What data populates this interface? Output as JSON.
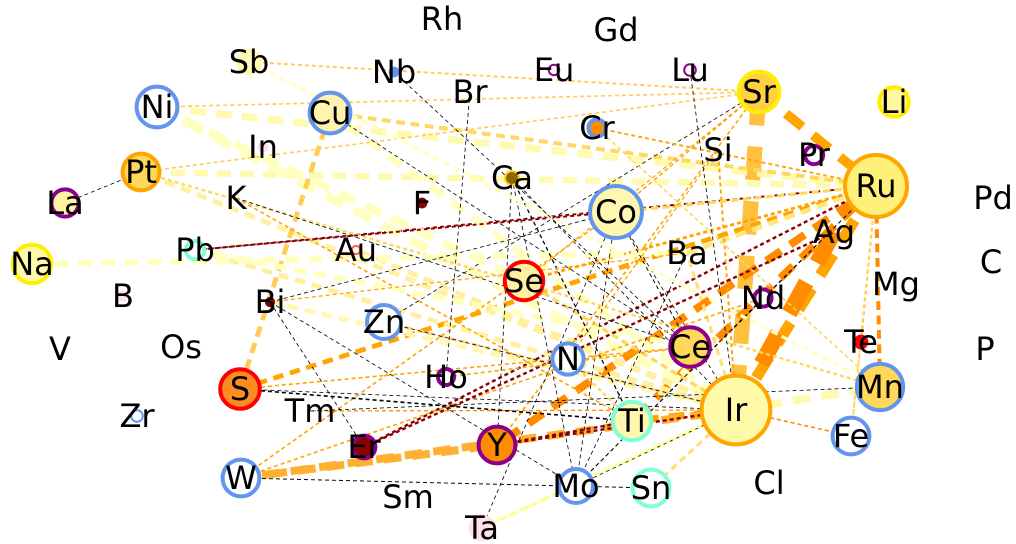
{
  "nodes": [
    {
      "id": "Rh",
      "label": "Rh"
    },
    {
      "id": "Gd",
      "label": "Gd"
    },
    {
      "id": "Sb",
      "label": "Sb",
      "fill": "#fffbbb",
      "stroke": "#fff8a8",
      "size": 0.28
    },
    {
      "id": "Nb",
      "label": "Nb",
      "fill": "#6495ed",
      "stroke": "#6495ed",
      "size": 0.05
    },
    {
      "id": "Eu",
      "label": "Eu",
      "fill": "#ffffff",
      "stroke": "#8b008b",
      "size": 0.08
    },
    {
      "id": "Lu",
      "label": "Lu",
      "fill": "#ffffff",
      "stroke": "#8b008b",
      "size": 0.1
    },
    {
      "id": "Sr",
      "label": "Sr",
      "fill": "#ffd040",
      "stroke": "#ffee00",
      "size": 0.62
    },
    {
      "id": "Li",
      "label": "Li",
      "fill": "#fff8a0",
      "stroke": "#ffee00",
      "size": 0.42
    },
    {
      "id": "Ni",
      "label": "Ni",
      "fill": "#ffffff",
      "stroke": "#6495ed",
      "size": 0.62
    },
    {
      "id": "Cu",
      "label": "Cu",
      "fill": "#fff3b0",
      "stroke": "#6495ed",
      "size": 0.62
    },
    {
      "id": "Br",
      "label": "Br"
    },
    {
      "id": "Cr",
      "label": "Cr",
      "fill": "#ff8c00",
      "stroke": "#6495ed",
      "size": 0.2
    },
    {
      "id": "In",
      "label": "In",
      "fill": "#ffe0ea",
      "stroke": "#ffe0ea",
      "size": 0.05
    },
    {
      "id": "Si",
      "label": "Si"
    },
    {
      "id": "Pr",
      "label": "Pr",
      "fill": "#ffffff",
      "stroke": "#8b008b",
      "size": 0.22
    },
    {
      "id": "Ru",
      "label": "Ru",
      "fill": "#fff07a",
      "stroke": "#ffa500",
      "size": 1.0
    },
    {
      "id": "Pt",
      "label": "Pt",
      "fill": "#ffd75a",
      "stroke": "#ffa500",
      "size": 0.55
    },
    {
      "id": "Ca",
      "label": "Ca",
      "fill": "#8b6508",
      "stroke": "#ffd700",
      "size": 0.14
    },
    {
      "id": "Pd",
      "label": "Pd"
    },
    {
      "id": "La",
      "label": "La",
      "fill": "#fff2a0",
      "stroke": "#8b008b",
      "size": 0.38
    },
    {
      "id": "K",
      "label": "K"
    },
    {
      "id": "F",
      "label": "F",
      "fill": "#8b0000",
      "stroke": "#8b0000",
      "size": 0.05
    },
    {
      "id": "Co",
      "label": "Co",
      "fill": "#fff6b0",
      "stroke": "#6495ed",
      "size": 0.82
    },
    {
      "id": "Ag",
      "label": "Ag"
    },
    {
      "id": "Pb",
      "label": "Pb",
      "fill": "#ffffff",
      "stroke": "#7fffd4",
      "size": 0.22
    },
    {
      "id": "Au",
      "label": "Au",
      "fill": "#ffffff",
      "stroke": "#ff6347",
      "size": 0.04
    },
    {
      "id": "Ba",
      "label": "Ba"
    },
    {
      "id": "C",
      "label": "C"
    },
    {
      "id": "Na",
      "label": "Na",
      "fill": "#fff8a8",
      "stroke": "#ffee00",
      "size": 0.58
    },
    {
      "id": "Se",
      "label": "Se",
      "fill": "#fff0a0",
      "stroke": "#ff0000",
      "size": 0.58
    },
    {
      "id": "Mg",
      "label": "Mg"
    },
    {
      "id": "B",
      "label": "B",
      "fill": "#ffe0ea",
      "stroke": "#ffe0ea",
      "size": 0.06
    },
    {
      "id": "Bi",
      "label": "Bi",
      "fill": "#8b0000",
      "stroke": "#8b0000",
      "size": 0.04
    },
    {
      "id": "Nd",
      "label": "Nd",
      "fill": "#ffffff",
      "stroke": "#8b008b",
      "size": 0.2
    },
    {
      "id": "Zn",
      "label": "Zn",
      "fill": "#ffffff",
      "stroke": "#6495ed",
      "size": 0.5
    },
    {
      "id": "Te",
      "label": "Te",
      "fill": "#ff0000",
      "stroke": "#ff0000",
      "size": 0.12
    },
    {
      "id": "V",
      "label": "V"
    },
    {
      "id": "Os",
      "label": "Os"
    },
    {
      "id": "P",
      "label": "P"
    },
    {
      "id": "N",
      "label": "N",
      "fill": "#ffffff",
      "stroke": "#6495ed",
      "size": 0.45
    },
    {
      "id": "Ce",
      "label": "Ce",
      "fill": "#ffd75a",
      "stroke": "#8b008b",
      "size": 0.6
    },
    {
      "id": "Ho",
      "label": "Ho",
      "fill": "#ffffff",
      "stroke": "#8b008b",
      "size": 0.18
    },
    {
      "id": "S",
      "label": "S",
      "fill": "#ff8c20",
      "stroke": "#ff0000",
      "size": 0.6
    },
    {
      "id": "Ir",
      "label": "Ir",
      "fill": "#fffaa8",
      "stroke": "#ffa500",
      "size": 1.12
    },
    {
      "id": "Mn",
      "label": "Mn",
      "fill": "#ffd75a",
      "stroke": "#6495ed",
      "size": 0.72
    },
    {
      "id": "Tm",
      "label": "Tm"
    },
    {
      "id": "Zr",
      "label": "Zr",
      "fill": "#ffffff",
      "stroke": "#6495ed",
      "size": 0.1
    },
    {
      "id": "Ti",
      "label": "Ti",
      "fill": "#fff7b0",
      "stroke": "#7fffd4",
      "size": 0.58
    },
    {
      "id": "Er",
      "label": "Er",
      "fill": "#8b0000",
      "stroke": "#8b008b",
      "size": 0.3
    },
    {
      "id": "Y",
      "label": "Y",
      "fill": "#ff8c00",
      "stroke": "#8b008b",
      "size": 0.55
    },
    {
      "id": "Fe",
      "label": "Fe",
      "fill": "#ffffff",
      "stroke": "#6495ed",
      "size": 0.55
    },
    {
      "id": "W",
      "label": "W",
      "fill": "#ffffff",
      "stroke": "#6495ed",
      "size": 0.55
    },
    {
      "id": "Cl",
      "label": "Cl"
    },
    {
      "id": "Sm",
      "label": "Sm"
    },
    {
      "id": "Mo",
      "label": "Mo",
      "fill": "#ffffff",
      "stroke": "#6495ed",
      "size": 0.5
    },
    {
      "id": "Sn",
      "label": "Sn",
      "fill": "#ffffff",
      "stroke": "#7fffd4",
      "size": 0.55
    },
    {
      "id": "Ta",
      "label": "Ta",
      "fill": "#ffe0ea",
      "stroke": "#ffe0ea",
      "size": 0.3
    }
  ],
  "edges": [
    {
      "from": "Ru",
      "to": "Ir",
      "color": "#ffa500",
      "weight": 0.7,
      "style": "dashed"
    },
    {
      "from": "Ag",
      "to": "Ir",
      "color": "#ff8c00",
      "weight": 1.0,
      "style": "dashed"
    },
    {
      "from": "Sr",
      "to": "Ir",
      "color": "#ffc040",
      "weight": 0.95,
      "style": "dashed"
    },
    {
      "from": "Sr",
      "to": "Ru",
      "color": "#ffa500",
      "weight": 0.6,
      "style": "dashed"
    },
    {
      "from": "Ru",
      "to": "Mn",
      "color": "#ff8c00",
      "weight": 0.25,
      "style": "dashed"
    },
    {
      "from": "Ru",
      "to": "Ti",
      "color": "#ff8c00",
      "weight": 0.5,
      "style": "dashed"
    },
    {
      "from": "Ru",
      "to": "Y",
      "color": "#ff8c00",
      "weight": 0.5,
      "style": "dashed"
    },
    {
      "from": "Ru",
      "to": "S",
      "color": "#ffa500",
      "weight": 0.3,
      "style": "dashed"
    },
    {
      "from": "Ru",
      "to": "Pb",
      "color": "#8b0000",
      "weight": 0.12,
      "style": "dashed"
    },
    {
      "from": "Ru",
      "to": "Er",
      "color": "#8b0000",
      "weight": 0.15,
      "style": "dashed"
    },
    {
      "from": "Ru",
      "to": "Ni",
      "color": "#fffab0",
      "weight": 0.45,
      "style": "dashed"
    },
    {
      "from": "Ru",
      "to": "Pt",
      "color": "#fffab0",
      "weight": 0.4,
      "style": "dashed"
    },
    {
      "from": "Ru",
      "to": "Cu",
      "color": "#ffd860",
      "weight": 0.25,
      "style": "dashed"
    },
    {
      "from": "Ru",
      "to": "Ba",
      "color": "#ffe880",
      "weight": 0.3,
      "style": "dashed"
    },
    {
      "from": "Ru",
      "to": "Co",
      "color": "#ffd75a",
      "weight": 0.2,
      "style": "dashed"
    },
    {
      "from": "Ru",
      "to": "Nd",
      "color": "#000000",
      "weight": 0.04,
      "style": "dashed"
    },
    {
      "from": "Ru",
      "to": "Mo",
      "color": "#000000",
      "weight": 0.04,
      "style": "dashed"
    },
    {
      "from": "Ru",
      "to": "Te",
      "color": "#ffa500",
      "weight": 0.12,
      "style": "dashed"
    },
    {
      "from": "Ru",
      "to": "Fe",
      "color": "#ffd75a",
      "weight": 0.12,
      "style": "dashed"
    },
    {
      "from": "Ru",
      "to": "Se",
      "color": "#ffa500",
      "weight": 0.18,
      "style": "dashed"
    },
    {
      "from": "Ir",
      "to": "Mn",
      "color": "#fffab0",
      "weight": 0.5,
      "style": "dashed"
    },
    {
      "from": "Ir",
      "to": "Ti",
      "color": "#ffa500",
      "weight": 0.45,
      "style": "dashed"
    },
    {
      "from": "Ir",
      "to": "W",
      "color": "#ffb030",
      "weight": 0.5,
      "style": "dashed"
    },
    {
      "from": "Ir",
      "to": "Ni",
      "color": "#ffffc0",
      "weight": 0.55,
      "style": "dashed"
    },
    {
      "from": "Ir",
      "to": "Cu",
      "color": "#ffffc0",
      "weight": 0.45,
      "style": "dashed"
    },
    {
      "from": "Ir",
      "to": "Pt",
      "color": "#fff0a0",
      "weight": 0.3,
      "style": "dashed"
    },
    {
      "from": "Ir",
      "to": "Pb",
      "color": "#fff0a0",
      "weight": 0.3,
      "style": "dashed"
    },
    {
      "from": "Ir",
      "to": "Bi",
      "color": "#fff8b0",
      "weight": 0.3,
      "style": "dashed"
    },
    {
      "from": "Ir",
      "to": "Au",
      "color": "#fff0a0",
      "weight": 0.3,
      "style": "dashed"
    },
    {
      "from": "Ir",
      "to": "Zn",
      "color": "#ffe080",
      "weight": 0.2,
      "style": "dashed"
    },
    {
      "from": "Ir",
      "to": "Co",
      "color": "#000000",
      "weight": 0.04,
      "style": "dashed"
    },
    {
      "from": "Ir",
      "to": "S",
      "color": "#000000",
      "weight": 0.04,
      "style": "dashed"
    },
    {
      "from": "Ir",
      "to": "Sn",
      "color": "#ffe080",
      "weight": 0.2,
      "style": "dashed"
    },
    {
      "from": "Ir",
      "to": "Ta",
      "color": "#ffff90",
      "weight": 0.2,
      "style": "dashed"
    },
    {
      "from": "Ir",
      "to": "Fe",
      "color": "#ff8c00",
      "weight": 0.1,
      "style": "dashed"
    },
    {
      "from": "Ir",
      "to": "Tm",
      "color": "#ff8c00",
      "weight": 0.08,
      "style": "dashed"
    },
    {
      "from": "Ir",
      "to": "Y",
      "color": "#8b0000",
      "weight": 0.15,
      "style": "dashed"
    },
    {
      "from": "Ir",
      "to": "Se",
      "color": "#ffd75a",
      "weight": 0.2,
      "style": "dashed"
    },
    {
      "from": "Ir",
      "to": "Ca",
      "color": "#000000",
      "weight": 0.04,
      "style": "dashed"
    },
    {
      "from": "Ir",
      "to": "Si",
      "color": "#ffa500",
      "weight": 0.12,
      "style": "dashed"
    },
    {
      "from": "Ir",
      "to": "Ba",
      "color": "#ffe080",
      "weight": 0.2,
      "style": "dashed"
    },
    {
      "from": "Ir",
      "to": "Mo",
      "color": "#000000",
      "weight": 0.04,
      "style": "dashed"
    },
    {
      "from": "Sr",
      "to": "Ni",
      "color": "#ffcc55",
      "weight": 0.1,
      "style": "dashed"
    },
    {
      "from": "Sr",
      "to": "Pt",
      "color": "#ffcc55",
      "weight": 0.1,
      "style": "dashed"
    },
    {
      "from": "Sr",
      "to": "Se",
      "color": "#ffa500",
      "weight": 0.08,
      "style": "dashed"
    },
    {
      "from": "Sr",
      "to": "Co",
      "color": "#ffa500",
      "weight": 0.1,
      "style": "dashed"
    },
    {
      "from": "Sr",
      "to": "Y",
      "color": "#ffa500",
      "weight": 0.1,
      "style": "dashed"
    },
    {
      "from": "Sr",
      "to": "Zn",
      "color": "#000000",
      "weight": 0.04,
      "style": "dashed"
    },
    {
      "from": "Sb",
      "to": "Sr",
      "color": "#ffcc55",
      "weight": 0.12,
      "style": "dashed"
    },
    {
      "from": "Cu",
      "to": "S",
      "color": "#ffcc55",
      "weight": 0.3,
      "style": "dashed"
    },
    {
      "from": "Cu",
      "to": "Ce",
      "color": "#000000",
      "weight": 0.04,
      "style": "dashed"
    },
    {
      "from": "Ni",
      "to": "Se",
      "color": "#ffffc0",
      "weight": 0.5,
      "style": "dashed"
    },
    {
      "from": "Pt",
      "to": "Mn",
      "color": "#ffd75a",
      "weight": 0.15,
      "style": "dashed"
    },
    {
      "from": "La",
      "to": "Pt",
      "color": "#000000",
      "weight": 0.04,
      "style": "dashed"
    },
    {
      "from": "Na",
      "to": "Ba",
      "color": "#ffffc0",
      "weight": 0.4,
      "style": "dashed"
    },
    {
      "from": "K",
      "to": "Ce",
      "color": "#000000",
      "weight": 0.04,
      "style": "dashed"
    },
    {
      "from": "K",
      "to": "Ti",
      "color": "#ffa500",
      "weight": 0.1,
      "style": "dashed"
    },
    {
      "from": "Pb",
      "to": "Ce",
      "color": "#ffffc0",
      "weight": 0.35,
      "style": "dashed"
    },
    {
      "from": "Co",
      "to": "Pb",
      "color": "#8b0000",
      "weight": 0.12,
      "style": "dashed"
    },
    {
      "from": "Co",
      "to": "Mo",
      "color": "#000000",
      "weight": 0.04,
      "style": "dashed"
    },
    {
      "from": "Co",
      "to": "Ce",
      "color": "#000000",
      "weight": 0.06,
      "style": "dashed"
    },
    {
      "from": "Co",
      "to": "W",
      "color": "#ffa500",
      "weight": 0.1,
      "style": "dashed"
    },
    {
      "from": "Co",
      "to": "Ta",
      "color": "#000000",
      "weight": 0.04,
      "style": "dashed"
    },
    {
      "from": "Ca",
      "to": "Y",
      "color": "#000000",
      "weight": 0.04,
      "style": "dashed"
    },
    {
      "from": "Ca",
      "to": "Ti",
      "color": "#000000",
      "weight": 0.08,
      "style": "dashed"
    },
    {
      "from": "Ca",
      "to": "Mo",
      "color": "#000000",
      "weight": 0.04,
      "style": "dashed"
    },
    {
      "from": "Br",
      "to": "Ho",
      "color": "#000000",
      "weight": 0.04,
      "style": "dashed"
    },
    {
      "from": "S",
      "to": "Ti",
      "color": "#000000",
      "weight": 0.1,
      "style": "dashed"
    },
    {
      "from": "S",
      "to": "Ce",
      "color": "#ffa500",
      "weight": 0.1,
      "style": "dashed"
    },
    {
      "from": "W",
      "to": "Sn",
      "color": "#000000",
      "weight": 0.06,
      "style": "dashed"
    },
    {
      "from": "W",
      "to": "Y",
      "color": "#ffb030",
      "weight": 0.5,
      "style": "dashed"
    },
    {
      "from": "W",
      "to": "Nd",
      "color": "#ffa500",
      "weight": 0.1,
      "style": "dashed"
    },
    {
      "from": "Er",
      "to": "Ag",
      "color": "#8b0000",
      "weight": 0.15,
      "style": "dashed"
    },
    {
      "from": "Bi",
      "to": "Er",
      "color": "#000000",
      "weight": 0.04,
      "style": "dashed"
    },
    {
      "from": "Bi",
      "to": "Mo",
      "color": "#000000",
      "weight": 0.04,
      "style": "dashed"
    },
    {
      "from": "Bi",
      "to": "Co",
      "color": "#000000",
      "weight": 0.04,
      "style": "dashed"
    },
    {
      "from": "Bi",
      "to": "Ba",
      "color": "#ffa500",
      "weight": 0.08,
      "style": "dashed"
    },
    {
      "from": "Zn",
      "to": "Ir",
      "color": "#000000",
      "weight": 0.04,
      "style": "dashed"
    },
    {
      "from": "Y",
      "to": "Ti",
      "color": "#8b0000",
      "weight": 0.15,
      "style": "dashed"
    },
    {
      "from": "Mo",
      "to": "Nd",
      "color": "#000000",
      "weight": 0.06,
      "style": "dashed"
    },
    {
      "from": "Mo",
      "to": "Ba",
      "color": "#000000",
      "weight": 0.04,
      "style": "dashed"
    },
    {
      "from": "Ta",
      "to": "Ir",
      "color": "#ffff90",
      "weight": 0.15,
      "style": "dashed"
    },
    {
      "from": "Fe",
      "to": "Te",
      "color": "#ffd75a",
      "weight": 0.1,
      "style": "dashed"
    },
    {
      "from": "Tm",
      "to": "Mn",
      "color": "#000000",
      "weight": 0.04,
      "style": "dashed"
    },
    {
      "from": "N",
      "to": "Si",
      "color": "#ffa500",
      "weight": 0.08,
      "style": "dashed"
    },
    {
      "from": "N",
      "to": "Ti",
      "color": "#ffd75a",
      "weight": 0.15,
      "style": "dashed"
    },
    {
      "from": "Ho",
      "to": "Ce",
      "color": "#ffa500",
      "weight": 0.1,
      "style": "dashed"
    },
    {
      "from": "Cr",
      "to": "Ru",
      "color": "#ffa500",
      "weight": 0.12,
      "style": "dashed"
    },
    {
      "from": "Cr",
      "to": "Mn",
      "color": "#ffd75a",
      "weight": 0.1,
      "style": "dashed"
    },
    {
      "from": "Sb",
      "to": "Mn",
      "color": "#ffffc0",
      "weight": 0.2,
      "style": "dashed"
    },
    {
      "from": "Nb",
      "to": "Ce",
      "color": "#000000",
      "weight": 0.04,
      "style": "dashed"
    },
    {
      "from": "Lu",
      "to": "Ir",
      "color": "#000000",
      "weight": 0.04,
      "style": "dashed"
    }
  ]
}
